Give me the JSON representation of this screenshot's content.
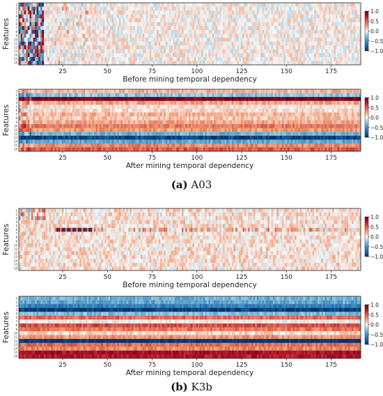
{
  "chart_data": [
    {
      "type": "heatmap",
      "xlabel": "Before mining temporal dependency",
      "ylabel": "Features",
      "x_ticks": [
        25,
        50,
        75,
        100,
        125,
        150,
        175
      ],
      "x_range": [
        1,
        191
      ],
      "rows": 16,
      "colorbar_ticks": [
        "1.0",
        "0.5",
        "0.0",
        "−0.5",
        "−1.0"
      ],
      "vmin": -1.0,
      "vmax": 1.0,
      "colormap": "RdBu_r",
      "pattern": "A03_before"
    },
    {
      "type": "heatmap",
      "xlabel": "After mining temporal dependency",
      "ylabel": "Features",
      "x_ticks": [
        25,
        50,
        75,
        100,
        125,
        150,
        175
      ],
      "x_range": [
        1,
        191
      ],
      "rows": 16,
      "colorbar_ticks": [
        "1.0",
        "0.5",
        "0.0",
        "−0.5",
        "−1.0"
      ],
      "vmin": -1.0,
      "vmax": 1.0,
      "colormap": "RdBu_r",
      "pattern": "A03_after"
    },
    {
      "type": "heatmap",
      "xlabel": "Before mining temporal dependency",
      "ylabel": "Features",
      "x_ticks": [
        25,
        50,
        75,
        100,
        125,
        150,
        175
      ],
      "x_range": [
        1,
        191
      ],
      "rows": 16,
      "colorbar_ticks": [
        "1.0",
        "0.5",
        "0.0",
        "−0.5",
        "−1.0"
      ],
      "vmin": -1.0,
      "vmax": 1.0,
      "colormap": "RdBu_r",
      "pattern": "K3b_before"
    },
    {
      "type": "heatmap",
      "xlabel": "After mining temporal dependency",
      "ylabel": "Features",
      "x_ticks": [
        25,
        50,
        75,
        100,
        125,
        150,
        175
      ],
      "x_range": [
        1,
        191
      ],
      "rows": 16,
      "colorbar_ticks": [
        "1.0",
        "0.5",
        "0.0",
        "−0.5",
        "−1.0"
      ],
      "vmin": -1.0,
      "vmax": 1.0,
      "colormap": "RdBu_r",
      "pattern": "K3b_after"
    }
  ],
  "captions": [
    {
      "label": "(a)",
      "name": "A03"
    },
    {
      "label": "(b)",
      "name": "K3b"
    }
  ]
}
